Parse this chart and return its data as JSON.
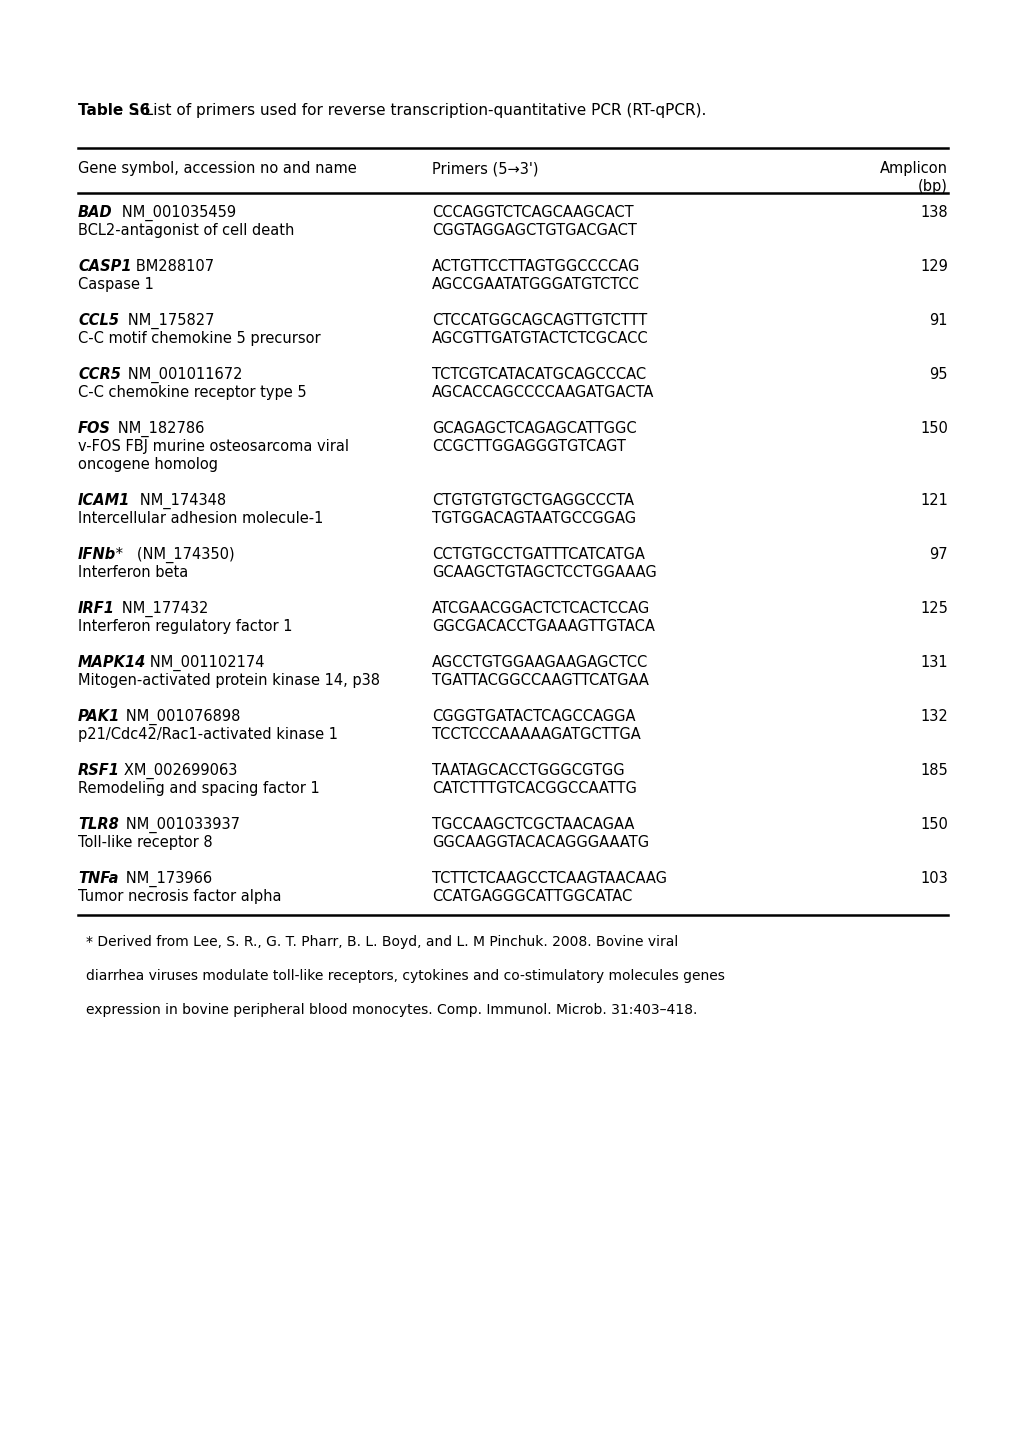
{
  "title_bold": "Table S6",
  "title_rest": ". List of primers used for reverse transcription-quantitative PCR (RT-qPCR).",
  "col_header1": "Gene symbol, accession no and name",
  "col_header2": "Primers (5→3')",
  "col_header3a": "Amplicon",
  "col_header3b": "(bp)",
  "rows": [
    {
      "gene_bold": "BAD",
      "gene_acc": "   NM_001035459",
      "gene_desc": "BCL2-antagonist of cell death",
      "primer1": "CCCAGGTCTCAGCAAGCACT",
      "primer2": "CGGTAGGAGCTGTGACGACT",
      "amplicon": "138",
      "extra_lines": 0
    },
    {
      "gene_bold": "CASP1",
      "gene_acc": "   BM288107",
      "gene_desc": "Caspase 1",
      "primer1": "ACTGTTCCTTAGTGGCCCCAG",
      "primer2": "AGCCGAATATGGGATGTCTCC",
      "amplicon": "129",
      "extra_lines": 0
    },
    {
      "gene_bold": "CCL5",
      "gene_acc": "   NM_175827",
      "gene_desc": "C-C motif chemokine 5 precursor",
      "primer1": "CTCCATGGCAGCAGTTGTCTTT",
      "primer2": "AGCGTTGATGTACTCTCGCACC",
      "amplicon": "91",
      "extra_lines": 0
    },
    {
      "gene_bold": "CCR5",
      "gene_acc": "   NM_001011672",
      "gene_desc": "C-C chemokine receptor type 5",
      "primer1": "TCTCGTCATACATGCAGCCCAC",
      "primer2": "AGCACCAGCCCCAAGATGACTA",
      "amplicon": "95",
      "extra_lines": 0
    },
    {
      "gene_bold": "FOS",
      "gene_acc": "   NM_182786",
      "gene_desc": "v-FOS FBJ murine osteosarcoma viral",
      "gene_desc2": "oncogene homolog",
      "primer1": "GCAGAGCTCAGAGCATTGGC",
      "primer2": "CCGCTTGGAGGGTGTCAGT",
      "amplicon": "150",
      "extra_lines": 1
    },
    {
      "gene_bold": "ICAM1",
      "gene_acc": "   NM_174348",
      "gene_desc": "Intercellular adhesion molecule-1",
      "primer1": "CTGTGTGTGCTGAGGCCCTA",
      "primer2": "TGTGGACAGTAATGCCGGAG",
      "amplicon": "121",
      "extra_lines": 0
    },
    {
      "gene_bold": "IFNb",
      "gene_acc": " *   (NM_174350)",
      "gene_desc": "Interferon beta",
      "primer1": "CCTGTGCCTGATTTCATCATGA",
      "primer2": "GCAAGCTGTAGCTCCTGGAAAG",
      "amplicon": "97",
      "extra_lines": 0
    },
    {
      "gene_bold": "IRF1",
      "gene_acc": "   NM_177432",
      "gene_desc": "Interferon regulatory factor 1",
      "primer1": "ATCGAACGGACTCTCACTCCAG",
      "primer2": "GGCGACACCTGAAAGTTGTACA",
      "amplicon": "125",
      "extra_lines": 0
    },
    {
      "gene_bold": "MAPK14",
      "gene_acc": "   NM_001102174",
      "gene_desc": "Mitogen-activated protein kinase 14, p38",
      "primer1": "AGCCTGTGGAAGAAGAGCTCC",
      "primer2": "TGATTACGGCCAAGTTCATGAA",
      "amplicon": "131",
      "extra_lines": 0
    },
    {
      "gene_bold": "PAK1",
      "gene_acc": "   NM_001076898",
      "gene_desc": "p21/Cdc42/Rac1-activated kinase 1",
      "primer1": "CGGGTGATACTCAGCCAGGA",
      "primer2": "TCCTCCCAAAAAGATGCTTGA",
      "amplicon": "132",
      "extra_lines": 0
    },
    {
      "gene_bold": "RSF1",
      "gene_acc": "   XM_002699063",
      "gene_desc": "Remodeling and spacing factor 1",
      "primer1": "TAATAGCACCTGGGCGTGG",
      "primer2": "CATCTTTGTCACGGCCAATTG",
      "amplicon": "185",
      "extra_lines": 0
    },
    {
      "gene_bold": "TLR8",
      "gene_acc": "   NM_001033937",
      "gene_desc": "Toll-like receptor 8",
      "primer1": "TGCCAAGCTCGCTAACAGAA",
      "primer2": "GGCAAGGTACACAGGGAAATG",
      "amplicon": "150",
      "extra_lines": 0
    },
    {
      "gene_bold": "TNFa",
      "gene_acc": "   NM_173966",
      "gene_desc": "Tumor necrosis factor alpha",
      "primer1": "TCTTCTCAAGCCTCAAGTAACAAG",
      "primer2": "CCATGAGGGCATTGGCATAC",
      "amplicon": "103",
      "extra_lines": 0
    }
  ],
  "footnote1": "* Derived from Lee, S. R., G. T. Pharr, B. L. Boyd, and L. M Pinchuk. 2008. Bovine viral",
  "footnote2": "diarrhea viruses modulate toll-like receptors, cytokines and co-stimulatory molecules genes",
  "footnote3": "expression in bovine peripheral blood monocytes. Comp. Immunol. Microb. 31:403–418.",
  "bg_color": "#ffffff",
  "text_color": "#000000",
  "fs": 10.5,
  "fs_title": 11.0,
  "fs_foot": 10.0
}
